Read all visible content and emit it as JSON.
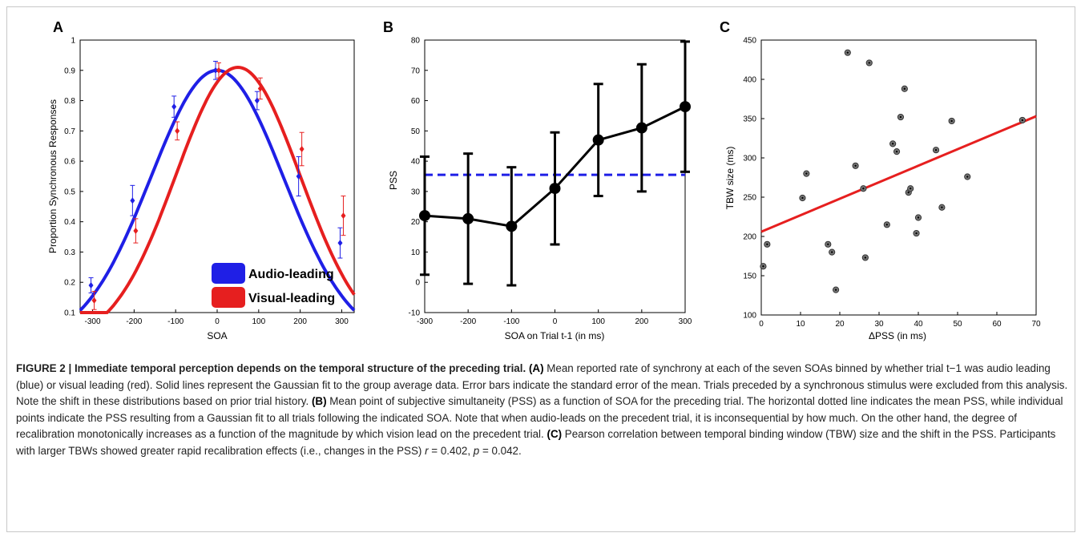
{
  "panels": {
    "a": {
      "letter": "A",
      "xlabel": "SOA",
      "ylabel": "Proportion Synchronous Responses",
      "legend": [
        {
          "label": "Audio-leading",
          "color": "#1f1fe6"
        },
        {
          "label": "Visual-leading",
          "color": "#e61f1f"
        }
      ]
    },
    "b": {
      "letter": "B",
      "xlabel": "SOA on Trial t-1 (in ms)",
      "ylabel": "PSS"
    },
    "c": {
      "letter": "C",
      "xlabel": "ΔPSS (in ms)",
      "ylabel": "TBW size (ms)"
    }
  },
  "chart_data": [
    {
      "type": "line",
      "x": [
        -300,
        -200,
        -100,
        0,
        100,
        200,
        300
      ],
      "xticks": [
        "-300",
        "-200",
        "-100",
        "0",
        "100",
        "200",
        "300"
      ],
      "yticks": [
        "0.1",
        "0.2",
        "0.3",
        "0.4",
        "0.5",
        "0.6",
        "0.7",
        "0.8",
        "0.9",
        "1"
      ],
      "xlim": [
        -330,
        330
      ],
      "ylim": [
        0.1,
        1.0
      ],
      "series": [
        {
          "name": "Audio-leading",
          "color": "#1f1fe6",
          "values": [
            0.19,
            0.47,
            0.78,
            0.9,
            0.8,
            0.55,
            0.33
          ],
          "errors": [
            0.025,
            0.05,
            0.035,
            0.03,
            0.03,
            0.065,
            0.05
          ],
          "fit": {
            "amp": 0.9,
            "mu": 0,
            "sigma": 160
          }
        },
        {
          "name": "Visual-leading",
          "color": "#e61f1f",
          "values": [
            0.14,
            0.37,
            0.7,
            0.9,
            0.84,
            0.64,
            0.42
          ],
          "errors": [
            0.03,
            0.04,
            0.03,
            0.025,
            0.035,
            0.055,
            0.065
          ],
          "fit": {
            "amp": 0.91,
            "mu": 50,
            "sigma": 150
          }
        }
      ]
    },
    {
      "type": "line",
      "x": [
        -300,
        -200,
        -100,
        0,
        100,
        200,
        300
      ],
      "xticks": [
        "-300",
        "-200",
        "-100",
        "0",
        "100",
        "200",
        "300"
      ],
      "yticks": [
        "-10",
        "0",
        "10",
        "20",
        "30",
        "40",
        "50",
        "60",
        "70",
        "80"
      ],
      "xlim": [
        -300,
        300
      ],
      "ylim": [
        -10,
        80
      ],
      "series": [
        {
          "values": [
            22,
            21,
            18.5,
            31,
            47,
            51,
            58
          ],
          "errors": [
            19.5,
            21.5,
            19.5,
            18.5,
            18.5,
            21,
            21.5
          ],
          "color": "#000000"
        }
      ],
      "hline": {
        "value": 35.5,
        "color": "#1f1fe6",
        "style": "dashed"
      }
    },
    {
      "type": "scatter",
      "xticks": [
        "0",
        "10",
        "20",
        "30",
        "40",
        "50",
        "60",
        "70"
      ],
      "yticks": [
        "100",
        "150",
        "200",
        "250",
        "300",
        "350",
        "400",
        "450"
      ],
      "xlim": [
        0,
        70
      ],
      "ylim": [
        100,
        450
      ],
      "points": [
        [
          0.5,
          162
        ],
        [
          1.5,
          190
        ],
        [
          10.5,
          249
        ],
        [
          11.5,
          280
        ],
        [
          17,
          190
        ],
        [
          18,
          180
        ],
        [
          19,
          132
        ],
        [
          22,
          434
        ],
        [
          24,
          290
        ],
        [
          26,
          261
        ],
        [
          26.5,
          173
        ],
        [
          27.5,
          421
        ],
        [
          32,
          215
        ],
        [
          33.5,
          318
        ],
        [
          34.5,
          308
        ],
        [
          35.5,
          352
        ],
        [
          36.5,
          388
        ],
        [
          37.5,
          256
        ],
        [
          38,
          261
        ],
        [
          39.5,
          204
        ],
        [
          40,
          224
        ],
        [
          44.5,
          310
        ],
        [
          46,
          237
        ],
        [
          48.5,
          347
        ],
        [
          52.5,
          276
        ],
        [
          66.5,
          348
        ]
      ],
      "fit_line": {
        "x": [
          0,
          70
        ],
        "y": [
          206,
          353
        ],
        "color": "#e61f1f"
      }
    }
  ],
  "caption": {
    "label": "FIGURE 2 | Immediate temporal perception depends on the temporal structure of the preceding trial.",
    "a_tag": "(A)",
    "a_text": " Mean reported rate of synchrony at each of the seven SOAs binned by whether trial t−1 was audio leading (blue) or visual leading (red). Solid lines represent the Gaussian fit to the group average data. Error bars indicate the standard error of the mean. Trials preceded by a synchronous stimulus were excluded from this analysis. Note the shift in these distributions based on prior trial history. ",
    "b_tag": "(B)",
    "b_text": " Mean point of subjective simultaneity (PSS) as a function of SOA for the preceding trial. The horizontal dotted line indicates the mean PSS, while individual points indicate the PSS resulting from a Gaussian fit to all trials following the indicated SOA. Note that when audio-leads on the precedent trial, it is inconsequential by how much. On the other hand, the degree of recalibration monotonically increases as a function of the magnitude by which vision lead on the precedent trial. ",
    "c_tag": "(C)",
    "c_text": " Pearson correlation between temporal binding window (TBW) size and the shift in the PSS. Participants with larger TBWs showed greater rapid recalibration effects (i.e., changes in the PSS) ",
    "stat_r_var": "r",
    "stat_r_val": " = 0.402, ",
    "stat_p_var": "p",
    "stat_p_val": " = 0.042."
  }
}
